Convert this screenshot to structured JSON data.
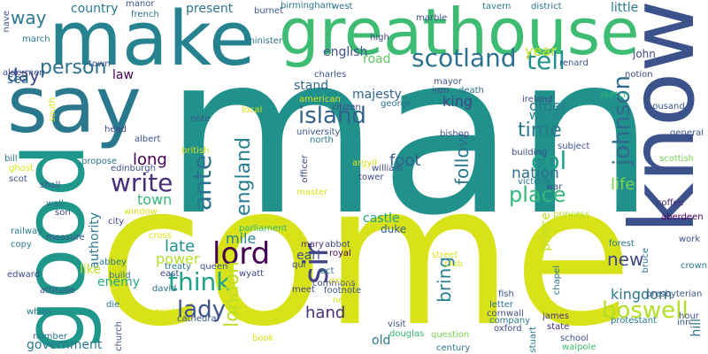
{
  "words": [
    {
      "text": "man",
      "color": "#21918c"
    },
    {
      "text": "come",
      "color": "#d8e219"
    },
    {
      "text": "make",
      "color": "#26828e"
    },
    {
      "text": "greathouse",
      "color": "#3fbc73"
    },
    {
      "text": "know",
      "color": "#3b528b"
    },
    {
      "text": "say",
      "color": "#2a788e"
    },
    {
      "text": "good",
      "color": "#1f978b"
    },
    {
      "text": "scotland",
      "color": "#2c728e"
    },
    {
      "text": "island",
      "color": "#33638d"
    },
    {
      "text": "lord",
      "color": "#440154"
    },
    {
      "text": "sir",
      "color": "#414487"
    },
    {
      "text": "tell",
      "color": "#21918c"
    },
    {
      "text": "johnson",
      "color": "#30698e"
    },
    {
      "text": "col",
      "color": "#1fa188"
    },
    {
      "text": "time",
      "color": "#2a788e"
    },
    {
      "text": "write",
      "color": "#472d7b"
    },
    {
      "text": "think",
      "color": "#1fa188"
    },
    {
      "text": "lady",
      "color": "#3b528b"
    },
    {
      "text": "boswell",
      "color": "#b5de2b"
    },
    {
      "text": "place",
      "color": "#35b779"
    },
    {
      "text": "ante",
      "color": "#2c728e"
    },
    {
      "text": "england",
      "color": "#287d8e"
    },
    {
      "text": "london",
      "color": "#bddf26"
    },
    {
      "text": "person",
      "color": "#2c728e"
    },
    {
      "text": "way",
      "color": "#2a788e"
    },
    {
      "text": "day",
      "color": "#3e4989"
    },
    {
      "text": "follow",
      "color": "#2a788e"
    },
    {
      "text": "bring",
      "color": "#26828e"
    },
    {
      "text": "hand",
      "color": "#472d7b"
    },
    {
      "text": "long",
      "color": "#440154"
    },
    {
      "text": "foot",
      "color": "#32648e"
    },
    {
      "text": "nation",
      "color": "#2c728e"
    },
    {
      "text": "life",
      "color": "#7ad151"
    },
    {
      "text": "new",
      "color": "#3e4989"
    },
    {
      "text": "kingdom",
      "color": "#2a788e"
    },
    {
      "text": "late",
      "color": "#21918c"
    },
    {
      "text": "mile",
      "color": "#25858e"
    },
    {
      "text": "power",
      "color": "#b5de2b"
    },
    {
      "text": "town",
      "color": "#35b779"
    },
    {
      "text": "english",
      "color": "#3b528b"
    },
    {
      "text": "road",
      "color": "#5ec962"
    },
    {
      "text": "year",
      "color": "#c2df23"
    },
    {
      "text": "king",
      "color": "#404688"
    },
    {
      "text": "order",
      "color": "#2a788e"
    },
    {
      "text": "water",
      "color": "#25858e"
    },
    {
      "text": "majesty",
      "color": "#33638d"
    },
    {
      "text": "stand",
      "color": "#31688e"
    },
    {
      "text": "law",
      "color": "#440154"
    },
    {
      "text": "country",
      "color": "#2a788e"
    },
    {
      "text": "present",
      "color": "#2c728e"
    },
    {
      "text": "little",
      "color": "#2a788e"
    },
    {
      "text": "sea",
      "color": "#2c728e"
    },
    {
      "text": "castle",
      "color": "#1fa188"
    },
    {
      "text": "duke",
      "color": "#33638d"
    },
    {
      "text": "earl",
      "color": "#3b528b"
    },
    {
      "text": "prince",
      "color": "#c2df23"
    },
    {
      "text": "authority",
      "color": "#2a788e"
    },
    {
      "text": "enemy",
      "color": "#22a785"
    },
    {
      "text": "like",
      "color": "#bddf26"
    },
    {
      "text": "government",
      "color": "#2a788e"
    },
    {
      "text": "old",
      "color": "#2a788e"
    },
    {
      "text": "john",
      "color": "#414487"
    },
    {
      "text": "thousand",
      "color": "#3b528b"
    },
    {
      "text": "general",
      "color": "#3b528b"
    },
    {
      "text": "aberdeen",
      "color": "#440154"
    },
    {
      "text": "coffee",
      "color": "#472d7b"
    },
    {
      "text": "princess",
      "color": "#b5de2b"
    },
    {
      "text": "crown",
      "color": "#2a788e"
    },
    {
      "text": "hill",
      "color": "#2c728e"
    },
    {
      "text": "presbyterian",
      "color": "#3b528b"
    },
    {
      "text": "protestant",
      "color": "#2a788e"
    },
    {
      "text": "school",
      "color": "#3e4989"
    },
    {
      "text": "walpole",
      "color": "#3fbc73"
    },
    {
      "text": "james",
      "color": "#46337e"
    },
    {
      "text": "state",
      "color": "#472d7b"
    },
    {
      "text": "letter",
      "color": "#2c728e"
    },
    {
      "text": "cornwall",
      "color": "#3e4989"
    },
    {
      "text": "fish",
      "color": "#3b528b"
    },
    {
      "text": "company",
      "color": "#2a788e"
    },
    {
      "text": "oxford",
      "color": "#3e4989"
    },
    {
      "text": "stuart",
      "color": "#2a788e"
    },
    {
      "text": "douglas",
      "color": "#35b779"
    },
    {
      "text": "visit",
      "color": "#3b528b"
    },
    {
      "text": "question",
      "color": "#7ad151"
    },
    {
      "text": "century",
      "color": "#2a788e"
    },
    {
      "text": "treaty",
      "color": "#2a788e"
    },
    {
      "text": "queen",
      "color": "#3b528b"
    },
    {
      "text": "david",
      "color": "#2c728e"
    },
    {
      "text": "wyatt",
      "color": "#3e4989"
    },
    {
      "text": "footnote",
      "color": "#3b528b"
    },
    {
      "text": "act",
      "color": "#2a788e"
    },
    {
      "text": "royal",
      "color": "#440154"
    },
    {
      "text": "mary",
      "color": "#472d7b"
    },
    {
      "text": "abbot",
      "color": "#3e4989"
    },
    {
      "text": "parliament",
      "color": "#35b779"
    },
    {
      "text": "cathedral",
      "color": "#3b528b"
    },
    {
      "text": "print",
      "color": "#d8e219"
    },
    {
      "text": "church",
      "color": "#3b528b"
    },
    {
      "text": "abbey",
      "color": "#2a788e"
    },
    {
      "text": "build",
      "color": "#2c728e"
    },
    {
      "text": "attitude",
      "color": "#3b528b"
    },
    {
      "text": "whigs",
      "color": "#2a788e"
    },
    {
      "text": "number",
      "color": "#2c728e"
    },
    {
      "text": "edward",
      "color": "#3e4989"
    },
    {
      "text": "measure",
      "color": "#3b528b"
    },
    {
      "text": "railway",
      "color": "#2a788e"
    },
    {
      "text": "copy",
      "color": "#2a788e"
    },
    {
      "text": "son",
      "color": "#3e4989"
    },
    {
      "text": "wall",
      "color": "#2a788e"
    },
    {
      "text": "shall",
      "color": "#3b528b"
    },
    {
      "text": "scot",
      "color": "#3b528b"
    },
    {
      "text": "bill",
      "color": "#2a788e"
    },
    {
      "text": "propose",
      "color": "#2c728e"
    },
    {
      "text": "edinburgh",
      "color": "#3b528b"
    },
    {
      "text": "albert",
      "color": "#3b528b"
    },
    {
      "text": "head",
      "color": "#3e4989"
    },
    {
      "text": "note",
      "color": "#3b528b"
    },
    {
      "text": "french",
      "color": "#2c728e"
    },
    {
      "text": "burnet",
      "color": "#3b528b"
    },
    {
      "text": "birmingham",
      "color": "#2a788e"
    },
    {
      "text": "west",
      "color": "#2c728e"
    },
    {
      "text": "tavern",
      "color": "#2a788e"
    },
    {
      "text": "district",
      "color": "#2a788e"
    },
    {
      "text": "minister",
      "color": "#2c728e"
    },
    {
      "text": "march",
      "color": "#2a788e"
    },
    {
      "text": "aldermen",
      "color": "#3b528b"
    },
    {
      "text": "charles",
      "color": "#3b528b"
    },
    {
      "text": "high",
      "color": "#3e4989"
    },
    {
      "text": "citizen",
      "color": "#3e4989"
    },
    {
      "text": "george",
      "color": "#2c728e"
    },
    {
      "text": "american",
      "color": "#d8e219"
    },
    {
      "text": "mayor",
      "color": "#3b528b"
    },
    {
      "text": "death",
      "color": "#2c728e"
    },
    {
      "text": "iron",
      "color": "#3b528b"
    },
    {
      "text": "ireland",
      "color": "#3e4989"
    },
    {
      "text": "sketch",
      "color": "#35b779"
    },
    {
      "text": "notion",
      "color": "#3e4989"
    },
    {
      "text": "renard",
      "color": "#3b528b"
    },
    {
      "text": "university",
      "color": "#3b528b"
    },
    {
      "text": "north",
      "color": "#2a788e"
    },
    {
      "text": "bishop",
      "color": "#3b528b"
    },
    {
      "text": "subject",
      "color": "#3b528b"
    },
    {
      "text": "building",
      "color": "#3e4989"
    },
    {
      "text": "victoria",
      "color": "#2a788e"
    },
    {
      "text": "war",
      "color": "#3b528b"
    },
    {
      "text": "scottish",
      "color": "#7ad151"
    },
    {
      "text": "william",
      "color": "#3e4989"
    },
    {
      "text": "argyll",
      "color": "#d8e219"
    },
    {
      "text": "tower",
      "color": "#3e4989"
    },
    {
      "text": "officer",
      "color": "#3e4989"
    },
    {
      "text": "master",
      "color": "#d8e219"
    },
    {
      "text": "british",
      "color": "#d8e219"
    },
    {
      "text": "city",
      "color": "#3e4989"
    },
    {
      "text": "work",
      "color": "#3b528b"
    },
    {
      "text": "bruce",
      "color": "#2c728e"
    },
    {
      "text": "forest",
      "color": "#2c728e"
    },
    {
      "text": "chapel",
      "color": "#2c728e"
    },
    {
      "text": "commons",
      "color": "#3e4989"
    },
    {
      "text": "club",
      "color": "#d8e219"
    },
    {
      "text": "street",
      "color": "#d8e219"
    },
    {
      "text": "exeter",
      "color": "#d8e219"
    },
    {
      "text": "net",
      "color": "#d8e219"
    },
    {
      "text": "cross",
      "color": "#d8e219"
    },
    {
      "text": "east",
      "color": "#3e4989"
    },
    {
      "text": "hour",
      "color": "#3b528b"
    },
    {
      "text": "window",
      "color": "#d8e219"
    },
    {
      "text": "ghost",
      "color": "#d8e219"
    },
    {
      "text": "local",
      "color": "#d8e219"
    },
    {
      "text": "south",
      "color": "#d8e219"
    },
    {
      "text": "manor",
      "color": "#3b528b"
    },
    {
      "text": "meet",
      "color": "#3e4989"
    },
    {
      "text": "marble",
      "color": "#3b528b"
    },
    {
      "text": "qui",
      "color": "#3e4989"
    },
    {
      "text": "inn",
      "color": "#3b528b"
    },
    {
      "text": "die",
      "color": "#2a788e"
    },
    {
      "text": "nave",
      "color": "#3b528b"
    },
    {
      "text": "town",
      "color": "#3b528b"
    },
    {
      "text": "book",
      "color": "#d8e219"
    }
  ]
}
